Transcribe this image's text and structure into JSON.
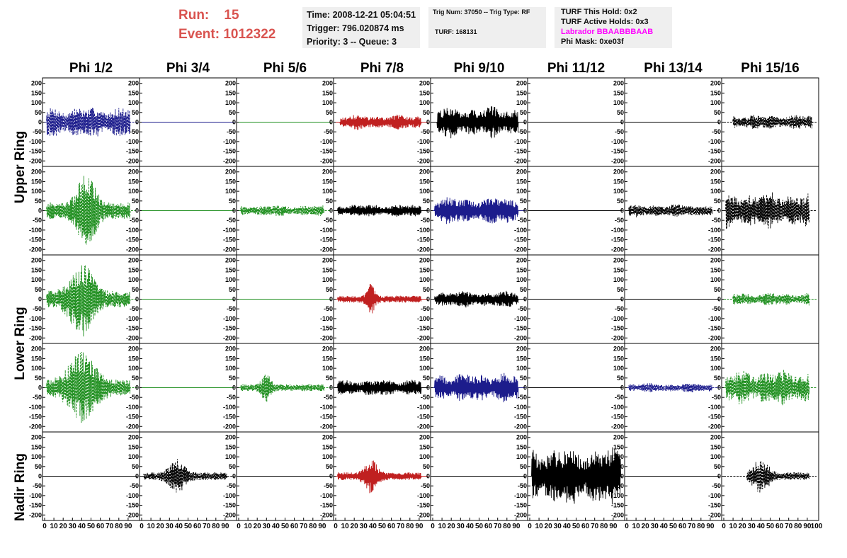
{
  "header": {
    "run_label": "Run:",
    "run_value": "15",
    "event_label": "Event:",
    "event_value": "1012322"
  },
  "info_time": {
    "time": "Time: 2008-12-21 05:04:51",
    "trigger": "Trigger: 796.020874 ms",
    "priority": "Priority: 3 -- Queue: 3"
  },
  "info_trig": {
    "trig": "Trig Num: 37050 -- Trig Type: RF",
    "turf": "TURF: 168131"
  },
  "info_turf": {
    "hold": "TURF This Hold: 0x2",
    "active": "TURF Active Holds: 0x3",
    "labrador": "Labrador BBAABBBAAB",
    "mask": "Phi Mask: 0xe03f"
  },
  "colors": {
    "blue": "#1c1c8c",
    "red": "#c02020",
    "green": "#1f8f1f",
    "black": "#000000",
    "magenta": "#ff00ff",
    "title_red": "#d9534f"
  },
  "chart_data": {
    "type": "line",
    "columns": [
      "Phi 1/2",
      "Phi 3/4",
      "Phi 5/6",
      "Phi 7/8",
      "Phi 9/10",
      "Phi 11/12",
      "Phi 13/14",
      "Phi 15/16"
    ],
    "rows": [
      "Upper Ring",
      "Lower Ring",
      "Nadir Ring"
    ],
    "ring_label_rows": [
      0,
      2,
      4
    ],
    "xlim": [
      0,
      100
    ],
    "ylim": [
      -210,
      210
    ],
    "yticks": [
      -200,
      -150,
      -100,
      -50,
      0,
      50,
      100,
      150,
      200
    ],
    "xtick_labels": [
      "0",
      "10",
      "20",
      "30",
      "40",
      "50",
      "60",
      "70",
      "80",
      "90"
    ],
    "x_end_label": "100",
    "panels": [
      [
        {
          "color": "blue",
          "style": "dashed",
          "amp": 85,
          "x0": 2,
          "x1": 92,
          "burst": null
        },
        {
          "color": "blue",
          "style": "solid",
          "amp": 0,
          "x0": 0,
          "x1": 100,
          "burst": null
        },
        {
          "color": "green",
          "style": "solid",
          "amp": 0,
          "x0": 0,
          "x1": 100,
          "burst": null
        },
        {
          "color": "red",
          "style": "solid",
          "amp": 40,
          "x0": 5,
          "x1": 92,
          "burst": null
        },
        {
          "color": "black",
          "style": "solid",
          "amp": 85,
          "x0": 5,
          "x1": 92,
          "burst": null
        },
        {
          "color": "black",
          "style": "solid",
          "amp": 0,
          "x0": 0,
          "x1": 100,
          "burst": null
        },
        {
          "color": "black",
          "style": "solid",
          "amp": 0,
          "x0": 0,
          "x1": 100,
          "burst": null
        },
        {
          "color": "black",
          "style": "dashed",
          "amp": 40,
          "x0": 10,
          "x1": 95,
          "burst": null
        }
      ],
      [
        {
          "color": "green",
          "style": "dashed",
          "amp": 95,
          "x0": 2,
          "x1": 92,
          "burst": [
            45,
            12
          ]
        },
        {
          "color": "green",
          "style": "solid",
          "amp": 0,
          "x0": 0,
          "x1": 100,
          "burst": null
        },
        {
          "color": "green",
          "style": "dashed",
          "amp": 30,
          "x0": 2,
          "x1": 92,
          "burst": null
        },
        {
          "color": "black",
          "style": "solid",
          "amp": 35,
          "x0": 2,
          "x1": 92,
          "burst": null
        },
        {
          "color": "blue",
          "style": "solid",
          "amp": 75,
          "x0": 2,
          "x1": 92,
          "burst": null
        },
        {
          "color": "black",
          "style": "solid",
          "amp": 0,
          "x0": 0,
          "x1": 100,
          "burst": null
        },
        {
          "color": "black",
          "style": "dashed",
          "amp": 35,
          "x0": 2,
          "x1": 92,
          "burst": null
        },
        {
          "color": "black",
          "style": "dashed",
          "amp": 100,
          "x0": 2,
          "x1": 92,
          "burst": null
        }
      ],
      [
        {
          "color": "green",
          "style": "dashed",
          "amp": 95,
          "x0": 2,
          "x1": 92,
          "burst": [
            40,
            15
          ]
        },
        {
          "color": "green",
          "style": "solid",
          "amp": 0,
          "x0": 0,
          "x1": 100,
          "burst": null
        },
        {
          "color": "green",
          "style": "solid",
          "amp": 0,
          "x0": 0,
          "x1": 100,
          "burst": null
        },
        {
          "color": "red",
          "style": "solid",
          "amp": 40,
          "x0": 2,
          "x1": 92,
          "burst": [
            38,
            5
          ]
        },
        {
          "color": "black",
          "style": "solid",
          "amp": 45,
          "x0": 2,
          "x1": 92,
          "burst": null
        },
        {
          "color": "black",
          "style": "solid",
          "amp": 0,
          "x0": 0,
          "x1": 100,
          "burst": null
        },
        {
          "color": "black",
          "style": "solid",
          "amp": 0,
          "x0": 0,
          "x1": 100,
          "burst": null
        },
        {
          "color": "green",
          "style": "dashed",
          "amp": 35,
          "x0": 10,
          "x1": 92,
          "burst": null
        }
      ],
      [
        {
          "color": "green",
          "style": "dashed",
          "amp": 90,
          "x0": 2,
          "x1": 92,
          "burst": [
            40,
            18
          ]
        },
        {
          "color": "green",
          "style": "solid",
          "amp": 0,
          "x0": 0,
          "x1": 100,
          "burst": null
        },
        {
          "color": "green",
          "style": "dashed",
          "amp": 40,
          "x0": 2,
          "x1": 92,
          "burst": [
            30,
            6
          ]
        },
        {
          "color": "black",
          "style": "solid",
          "amp": 45,
          "x0": 2,
          "x1": 92,
          "burst": null
        },
        {
          "color": "blue",
          "style": "solid",
          "amp": 80,
          "x0": 2,
          "x1": 92,
          "burst": null
        },
        {
          "color": "black",
          "style": "solid",
          "amp": 0,
          "x0": 0,
          "x1": 100,
          "burst": null
        },
        {
          "color": "blue",
          "style": "dashed",
          "amp": 25,
          "x0": 2,
          "x1": 92,
          "burst": null
        },
        {
          "color": "green",
          "style": "dashed",
          "amp": 95,
          "x0": 2,
          "x1": 92,
          "burst": null
        }
      ],
      [
        {
          "color": "black",
          "style": "solid",
          "amp": 0,
          "x0": 0,
          "x1": 100,
          "burst": null
        },
        {
          "color": "black",
          "style": "dashed",
          "amp": 45,
          "x0": 2,
          "x1": 92,
          "burst": [
            38,
            10
          ]
        },
        {
          "color": "black",
          "style": "solid",
          "amp": 0,
          "x0": 0,
          "x1": 100,
          "burst": null
        },
        {
          "color": "red",
          "style": "solid",
          "amp": 45,
          "x0": 2,
          "x1": 92,
          "burst": [
            38,
            8
          ]
        },
        {
          "color": "black",
          "style": "solid",
          "amp": 0,
          "x0": 0,
          "x1": 100,
          "burst": null
        },
        {
          "color": "black",
          "style": "solid",
          "amp": 160,
          "x0": 2,
          "x1": 98,
          "burst": null
        },
        {
          "color": "black",
          "style": "solid",
          "amp": 0,
          "x0": 0,
          "x1": 100,
          "burst": null
        },
        {
          "color": "black",
          "style": "dashed",
          "amp": 45,
          "x0": 25,
          "x1": 92,
          "burst": [
            40,
            10
          ]
        }
      ]
    ]
  }
}
